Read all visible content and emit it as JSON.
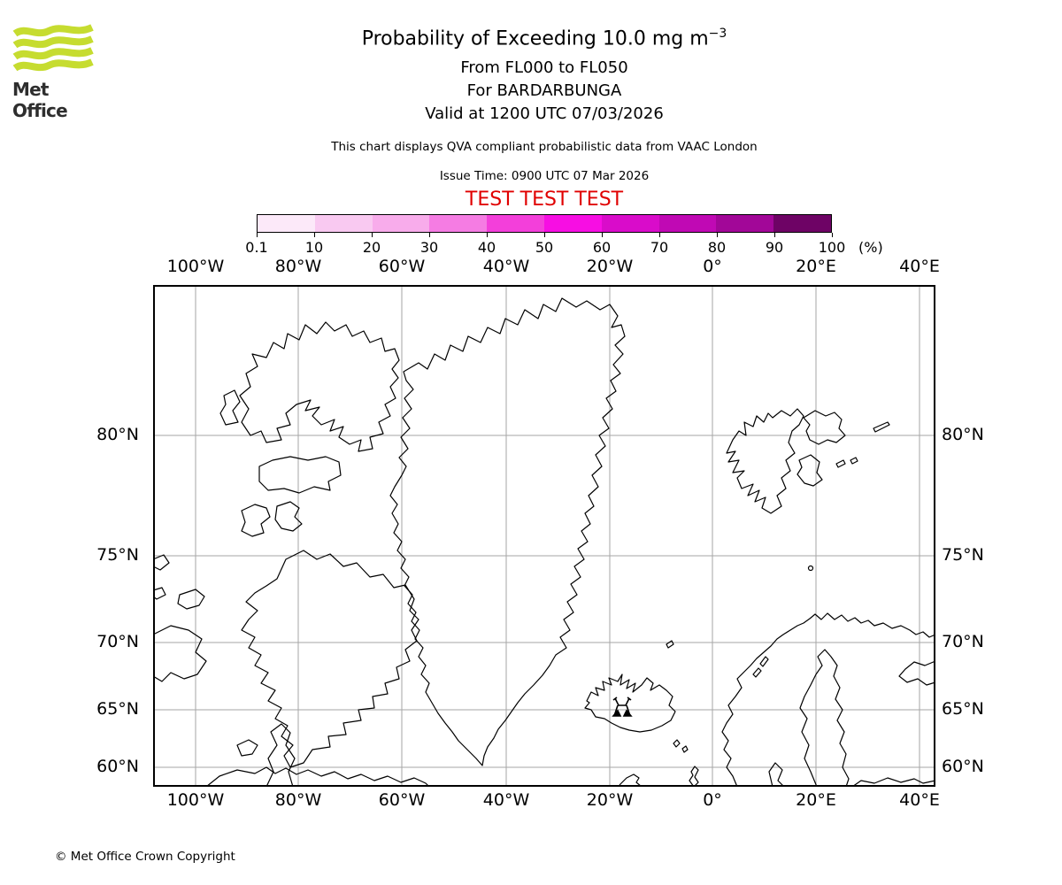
{
  "logo": {
    "text": "Met Office",
    "brand_green": "#c6dc30"
  },
  "header": {
    "title": "Probability of Exceeding 10.0 mg m",
    "title_superscript": "−3",
    "flight_levels": "From FL000 to FL050",
    "volcano_line": "For BARDARBUNGA",
    "valid_line": "Valid at 1200 UTC 07/03/2026",
    "disclaimer": "This chart displays QVA compliant probabilistic data from VAAC London",
    "issue_time": "Issue Time: 0900 UTC 07 Mar 2026",
    "test_banner": "TEST TEST TEST",
    "test_color": "#e00000"
  },
  "colorbar": {
    "tick_labels": [
      "0.1",
      "10",
      "20",
      "30",
      "40",
      "50",
      "60",
      "70",
      "80",
      "90",
      "100"
    ],
    "unit_label": "(%)",
    "colors": [
      "#fce9f9",
      "#f9c9f1",
      "#f8aceb",
      "#f57ce3",
      "#f33fda",
      "#f70ee3",
      "#d90cca",
      "#c009b4",
      "#a20798",
      "#6e0365"
    ]
  },
  "map": {
    "lon_labels": [
      "100°W",
      "80°W",
      "60°W",
      "40°W",
      "20°W",
      "0°",
      "20°E",
      "40°E"
    ],
    "lat_labels": [
      "80°N",
      "75°N",
      "70°N",
      "65°N",
      "60°N"
    ],
    "gridline_color": "#a6a6a6",
    "coast_color": "#000000",
    "volcano_marker": "volcano eruption symbol (Bardarbunga, Iceland)"
  },
  "footer": {
    "copyright": "© Met Office Crown Copyright"
  },
  "chart_data": {
    "type": "map",
    "projection": "mercator",
    "lon_ticks_deg": [
      -100,
      -80,
      -60,
      -40,
      -20,
      0,
      20,
      40
    ],
    "lat_ticks_deg": [
      80,
      75,
      70,
      65,
      60
    ],
    "colorbar_percent_levels": [
      0.1,
      10,
      20,
      30,
      40,
      50,
      60,
      70,
      80,
      90,
      100
    ],
    "probability_contours_visible": false
  }
}
